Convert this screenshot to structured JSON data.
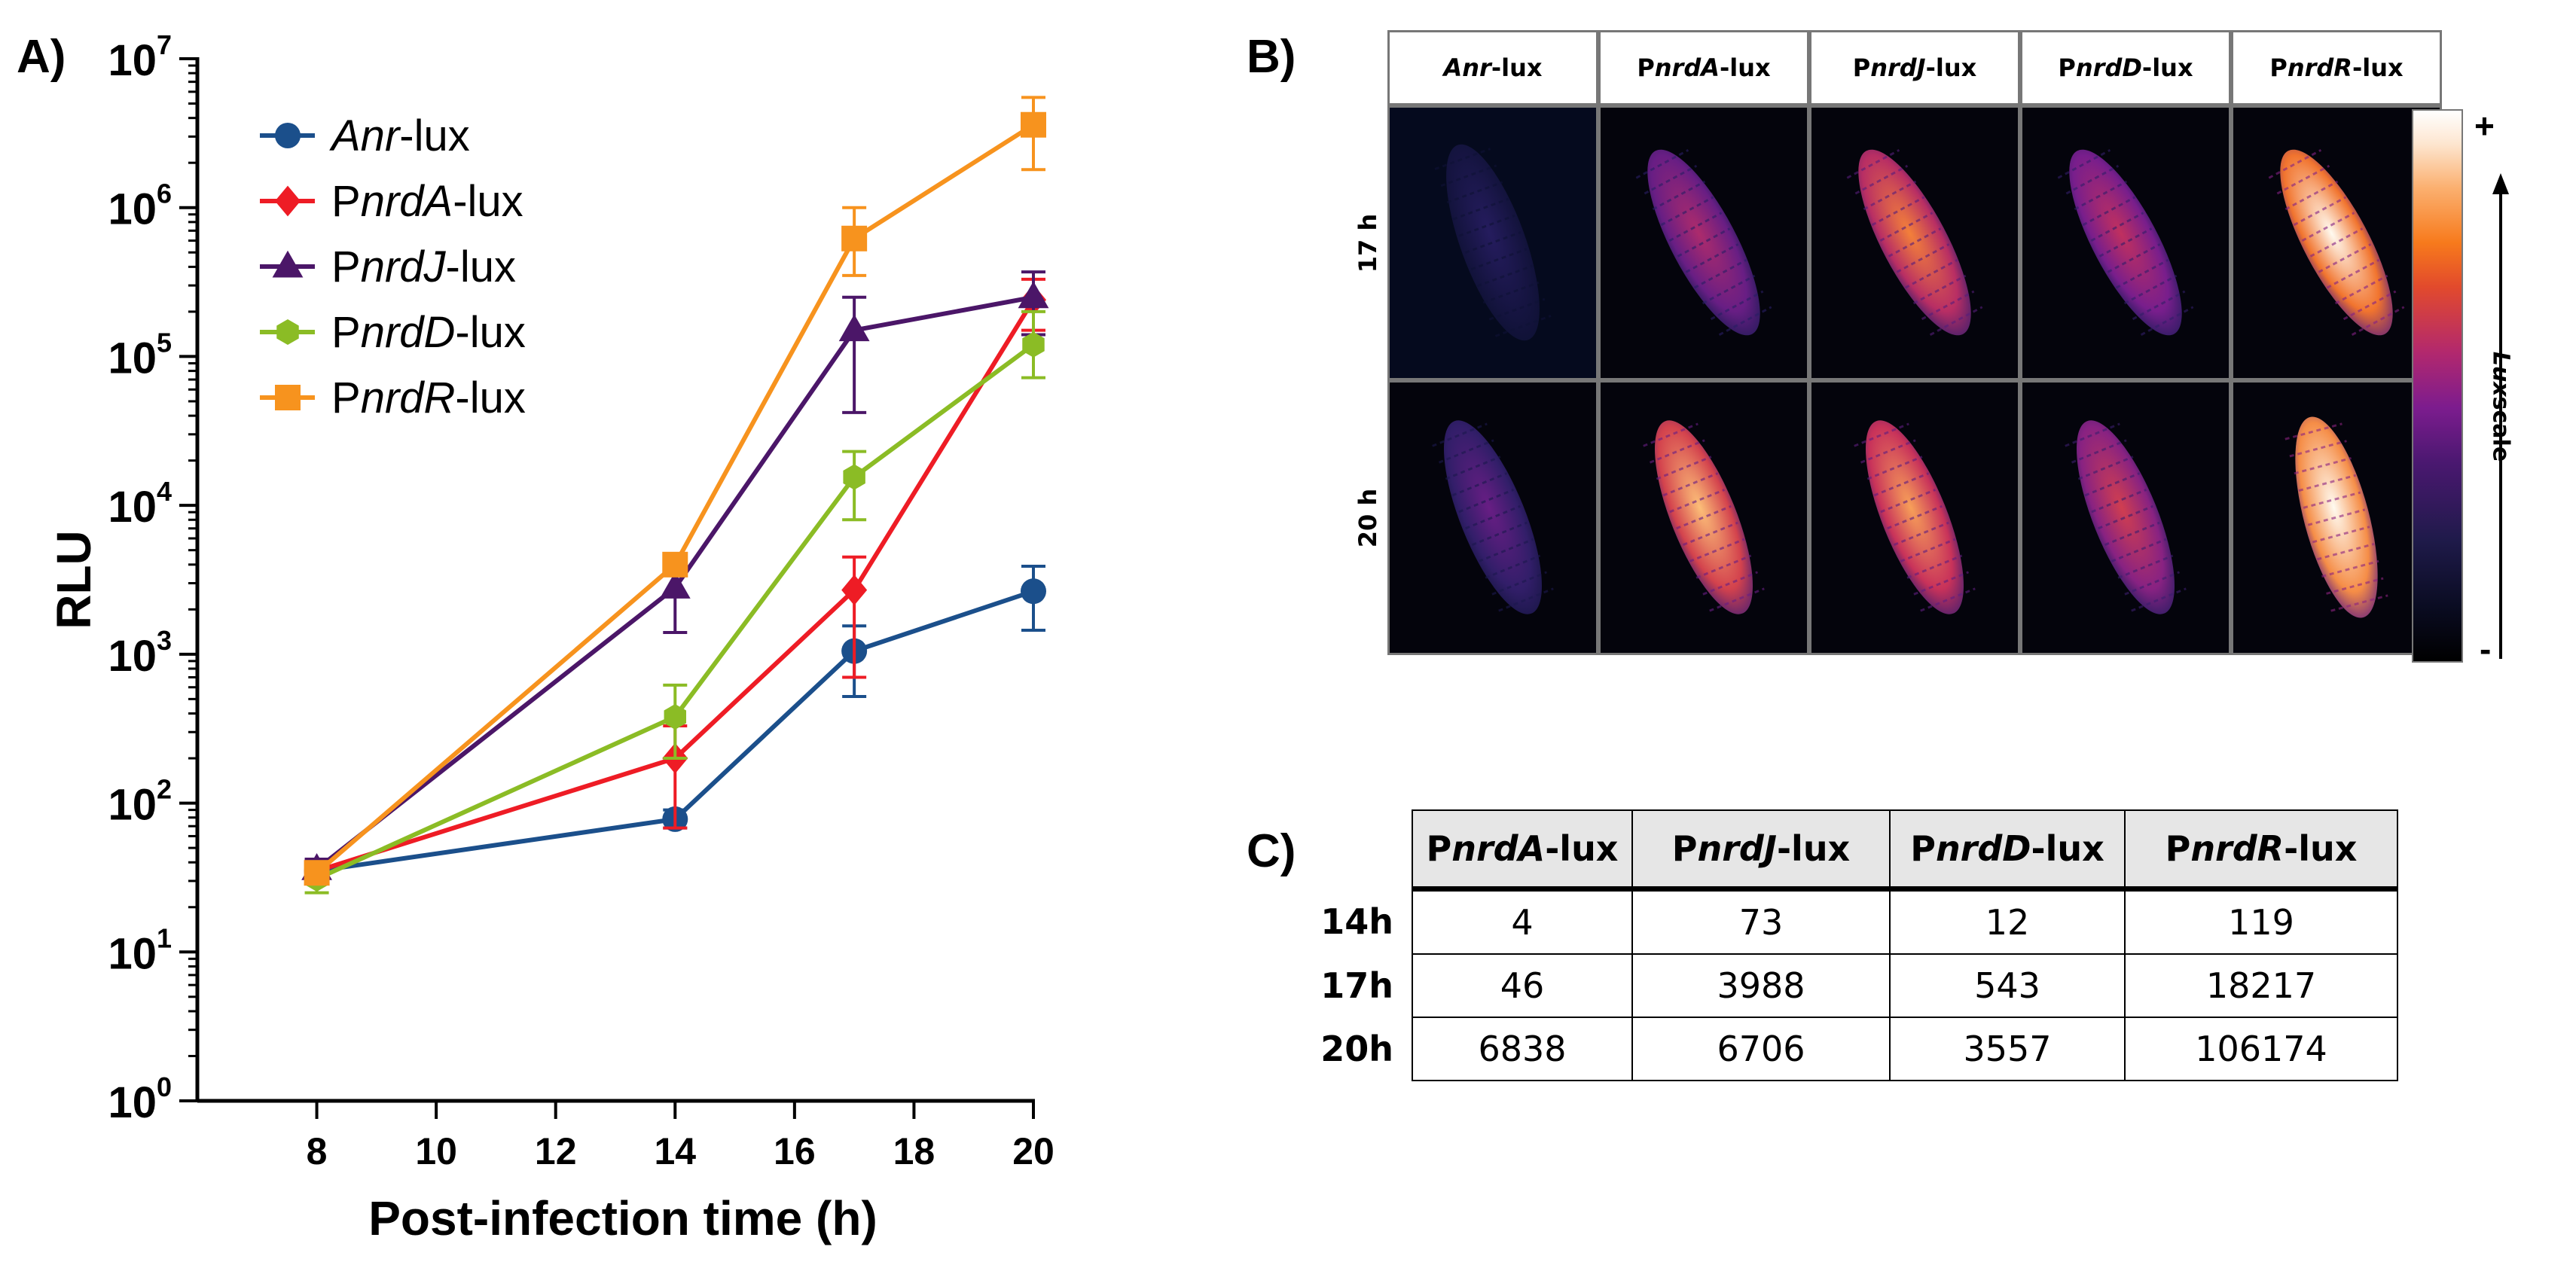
{
  "panels": {
    "a": "A)",
    "b": "B)",
    "c": "C)"
  },
  "chart_data": {
    "type": "line",
    "yscale": "log",
    "xlabel": "Post-infection time (h)",
    "ylabel": "RLU",
    "x": [
      8,
      14,
      17,
      20
    ],
    "xlim": [
      6,
      20
    ],
    "xticks": [
      8,
      10,
      12,
      14,
      16,
      18,
      20
    ],
    "ylim": [
      1,
      10000000
    ],
    "ytick_exponents": [
      0,
      1,
      2,
      3,
      4,
      5,
      6,
      7
    ],
    "ytick_base": "10",
    "legend_position": "top-left",
    "series": [
      {
        "name": "Anr-lux",
        "italic": "Anr",
        "prefix": "",
        "suffix": "-lux",
        "color": "#1b4f8b",
        "marker": "circle",
        "values": [
          35,
          78,
          1050,
          2650
        ],
        "lower": [
          30,
          68,
          520,
          1450
        ],
        "upper": [
          41,
          90,
          1550,
          3900
        ]
      },
      {
        "name": "PnrdA-lux",
        "italic": "nrdA",
        "prefix": "P",
        "suffix": "-lux",
        "color": "#ee1c25",
        "marker": "diamond",
        "values": [
          35,
          200,
          2700,
          240000
        ],
        "lower": [
          30,
          68,
          700,
          150000
        ],
        "upper": [
          41,
          330,
          4500,
          330000
        ]
      },
      {
        "name": "PnrdJ-lux",
        "italic": "nrdJ",
        "prefix": "P",
        "suffix": "-lux",
        "color": "#4b1668",
        "marker": "triangle",
        "values": [
          36,
          2800,
          150000,
          250000
        ],
        "lower": [
          31,
          1400,
          42000,
          140000
        ],
        "upper": [
          42,
          4200,
          250000,
          370000
        ]
      },
      {
        "name": "PnrdD-lux",
        "italic": "nrdD",
        "prefix": "P",
        "suffix": "-lux",
        "color": "#8bbc25",
        "marker": "hexagon",
        "values": [
          31,
          380,
          15500,
          120000
        ],
        "lower": [
          25,
          200,
          8000,
          72000
        ],
        "upper": [
          37,
          620,
          23000,
          200000
        ]
      },
      {
        "name": "PnrdR-lux",
        "italic": "nrdR",
        "prefix": "P",
        "suffix": "-lux",
        "color": "#f7931e",
        "marker": "square",
        "values": [
          34,
          4000,
          620000,
          3600000
        ],
        "lower": [
          29,
          3400,
          350000,
          1800000
        ],
        "upper": [
          40,
          4600,
          1000000,
          5500000
        ]
      }
    ]
  },
  "imaging": {
    "columns": [
      {
        "prefix": "",
        "italic": "Anr",
        "suffix": "-lux"
      },
      {
        "prefix": "P",
        "italic": "nrdA",
        "suffix": "-lux"
      },
      {
        "prefix": "P",
        "italic": "nrdJ",
        "suffix": "-lux"
      },
      {
        "prefix": "P",
        "italic": "nrdD",
        "suffix": "-lux"
      },
      {
        "prefix": "P",
        "italic": "nrdR",
        "suffix": "-lux"
      }
    ],
    "rows": [
      "17 h",
      "20 h"
    ],
    "intensity": [
      [
        0.1,
        0.45,
        0.7,
        0.5,
        0.95
      ],
      [
        0.28,
        0.8,
        0.75,
        0.55,
        1.0
      ]
    ],
    "scale_plus": "+",
    "scale_minus": "-",
    "scale_italic": "Lux",
    "scale_rest": " scale"
  },
  "table": {
    "headers": [
      {
        "prefix": "P",
        "italic": "nrdA",
        "suffix": "-lux"
      },
      {
        "prefix": "P",
        "italic": "nrdJ",
        "suffix": "-lux"
      },
      {
        "prefix": "P",
        "italic": "nrdD",
        "suffix": "-lux"
      },
      {
        "prefix": "P",
        "italic": "nrdR",
        "suffix": "-lux"
      }
    ],
    "rows": [
      {
        "label": "14h",
        "values": [
          "4",
          "73",
          "12",
          "119"
        ]
      },
      {
        "label": "17h",
        "values": [
          "46",
          "3988",
          "543",
          "18217"
        ]
      },
      {
        "label": "20h",
        "values": [
          "6838",
          "6706",
          "3557",
          "106174"
        ]
      }
    ]
  }
}
